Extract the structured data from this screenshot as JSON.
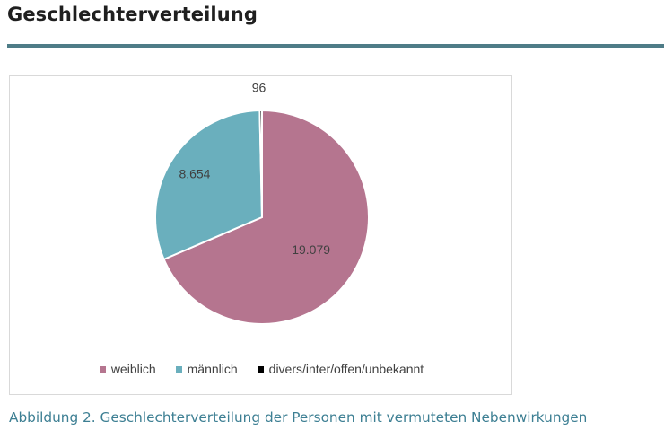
{
  "page": {
    "heading": "Geschlechterverteilung",
    "caption": "Abbildung 2. Geschlechterverteilung der Personen mit vermuteten Nebenwirkungen"
  },
  "colors": {
    "rule": "#4e7c87",
    "caption": "#3d7f93",
    "weiblich": "#b5758f",
    "maennlich": "#6aafbd",
    "divers": "#000000"
  },
  "chart_data": {
    "type": "pie",
    "title": "",
    "slices": [
      {
        "label": "weiblich",
        "value": 19079,
        "value_label": "19.079",
        "color": "#b5758f"
      },
      {
        "label": "männlich",
        "value": 8654,
        "value_label": "8.654",
        "color": "#6aafbd"
      },
      {
        "label": "divers/inter/offen/unbekannt",
        "value": 96,
        "value_label": "96",
        "color": "#000000"
      }
    ],
    "start_angle": "12 o'clock",
    "direction": "clockwise",
    "legend_position": "bottom"
  }
}
